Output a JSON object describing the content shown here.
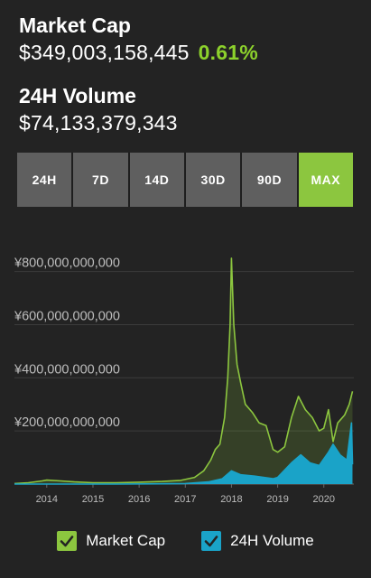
{
  "header": {
    "market_cap_title": "Market Cap",
    "market_cap_value": "$349,003,158,445",
    "market_cap_change": "0.61%",
    "volume_title": "24H Volume",
    "volume_value": "$74,133,379,343"
  },
  "range_tabs": [
    {
      "label": "24H",
      "active": false
    },
    {
      "label": "7D",
      "active": false
    },
    {
      "label": "14D",
      "active": false
    },
    {
      "label": "30D",
      "active": false
    },
    {
      "label": "90D",
      "active": false
    },
    {
      "label": "MAX",
      "active": true
    }
  ],
  "legend": {
    "market_cap_label": "Market Cap",
    "volume_label": "24H Volume",
    "market_cap_color": "#8cc63f",
    "volume_color": "#1aa3c8"
  },
  "chart_data": {
    "type": "area",
    "x_ticks": [
      "2014",
      "2015",
      "2016",
      "2017",
      "2018",
      "2019",
      "2020"
    ],
    "y_ticks": [
      "¥200,000,000,000",
      "¥400,000,000,000",
      "¥600,000,000,000",
      "¥800,000,000,000"
    ],
    "ylim": [
      0,
      870000000000
    ],
    "xlim": [
      2013.3,
      2020.65
    ],
    "grid": true,
    "series": [
      {
        "name": "Market Cap",
        "color": "#8cc63f",
        "points": [
          [
            2013.3,
            2000000000
          ],
          [
            2013.6,
            5000000000
          ],
          [
            2013.9,
            12000000000
          ],
          [
            2014.0,
            15000000000
          ],
          [
            2014.3,
            12000000000
          ],
          [
            2014.6,
            8000000000
          ],
          [
            2015.0,
            5000000000
          ],
          [
            2015.5,
            5000000000
          ],
          [
            2016.0,
            7000000000
          ],
          [
            2016.5,
            10000000000
          ],
          [
            2016.9,
            14000000000
          ],
          [
            2017.2,
            25000000000
          ],
          [
            2017.4,
            50000000000
          ],
          [
            2017.55,
            90000000000
          ],
          [
            2017.65,
            130000000000
          ],
          [
            2017.75,
            150000000000
          ],
          [
            2017.85,
            250000000000
          ],
          [
            2017.92,
            400000000000
          ],
          [
            2017.97,
            600000000000
          ],
          [
            2018.0,
            850000000000
          ],
          [
            2018.05,
            600000000000
          ],
          [
            2018.12,
            450000000000
          ],
          [
            2018.2,
            380000000000
          ],
          [
            2018.3,
            300000000000
          ],
          [
            2018.45,
            270000000000
          ],
          [
            2018.6,
            230000000000
          ],
          [
            2018.75,
            220000000000
          ],
          [
            2018.9,
            130000000000
          ],
          [
            2019.0,
            120000000000
          ],
          [
            2019.15,
            140000000000
          ],
          [
            2019.3,
            250000000000
          ],
          [
            2019.45,
            330000000000
          ],
          [
            2019.6,
            280000000000
          ],
          [
            2019.75,
            250000000000
          ],
          [
            2019.9,
            200000000000
          ],
          [
            2020.0,
            210000000000
          ],
          [
            2020.1,
            280000000000
          ],
          [
            2020.2,
            160000000000
          ],
          [
            2020.3,
            230000000000
          ],
          [
            2020.45,
            260000000000
          ],
          [
            2020.55,
            300000000000
          ],
          [
            2020.62,
            349000000000
          ]
        ]
      },
      {
        "name": "24H Volume",
        "color": "#1aa3c8",
        "points": [
          [
            2013.3,
            0
          ],
          [
            2015.5,
            0
          ],
          [
            2016.5,
            1000000000
          ],
          [
            2017.0,
            2000000000
          ],
          [
            2017.5,
            8000000000
          ],
          [
            2017.8,
            20000000000
          ],
          [
            2018.0,
            50000000000
          ],
          [
            2018.2,
            35000000000
          ],
          [
            2018.5,
            30000000000
          ],
          [
            2018.9,
            20000000000
          ],
          [
            2019.0,
            25000000000
          ],
          [
            2019.3,
            80000000000
          ],
          [
            2019.5,
            110000000000
          ],
          [
            2019.7,
            80000000000
          ],
          [
            2019.9,
            70000000000
          ],
          [
            2020.1,
            120000000000
          ],
          [
            2020.2,
            150000000000
          ],
          [
            2020.35,
            110000000000
          ],
          [
            2020.5,
            90000000000
          ],
          [
            2020.6,
            230000000000
          ],
          [
            2020.62,
            74000000000
          ]
        ]
      }
    ]
  }
}
